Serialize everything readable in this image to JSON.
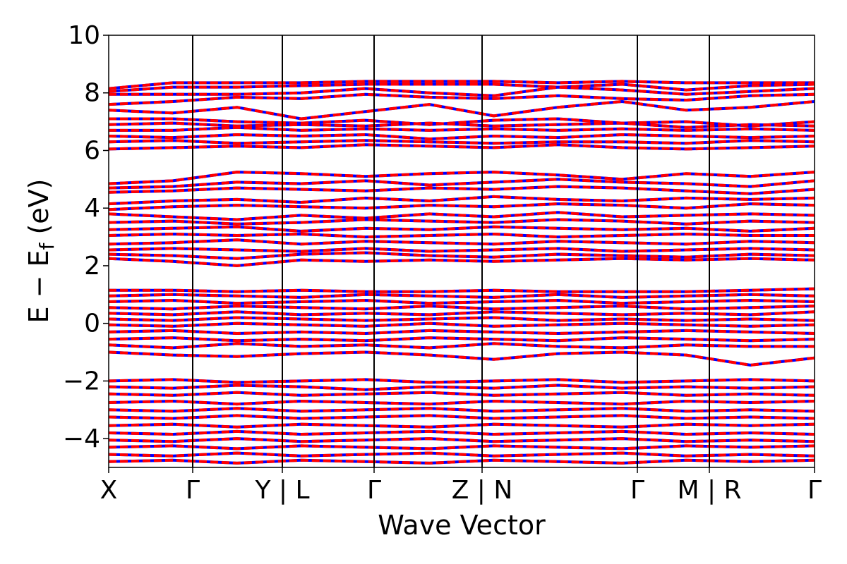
{
  "chart_data": {
    "type": "line",
    "title": "",
    "xlabel": "Wave Vector",
    "ylabel": "E − Eᶠ (eV)",
    "ylabel_main": "E − E",
    "ylabel_sub": "f",
    "ylabel_unit": " (eV)",
    "ylim": [
      -5,
      10
    ],
    "yticks": [
      -4,
      -2,
      0,
      2,
      4,
      6,
      8,
      10
    ],
    "ytick_labels": [
      "−4",
      "−2",
      "0",
      "2",
      "4",
      "6",
      "8",
      "10"
    ],
    "x_range": [
      0,
      1
    ],
    "kpoint_ticks": [
      {
        "x": 0.0,
        "label": "X"
      },
      {
        "x": 0.119,
        "label": "Γ"
      },
      {
        "x": 0.246,
        "label": "Y | L"
      },
      {
        "x": 0.376,
        "label": "Γ"
      },
      {
        "x": 0.529,
        "label": "Z | N"
      },
      {
        "x": 0.749,
        "label": "Γ"
      },
      {
        "x": 0.851,
        "label": "M | R"
      },
      {
        "x": 1.0,
        "label": "Γ"
      }
    ],
    "segment_boundaries": [
      0.119,
      0.246,
      0.376,
      0.529,
      0.749,
      0.851
    ],
    "grid": false,
    "legend": "none",
    "series": [
      {
        "color": "#0000ff",
        "linestyle": "solid"
      },
      {
        "color": "#ff0000",
        "linestyle": "dashed"
      }
    ],
    "bands": [
      [
        8.15,
        8.35,
        8.35,
        8.35,
        8.4,
        8.4,
        8.4,
        8.35,
        8.4,
        8.35,
        8.35,
        8.35
      ],
      [
        8.05,
        8.2,
        8.2,
        8.25,
        8.3,
        8.3,
        8.3,
        8.2,
        8.3,
        8.1,
        8.25,
        8.3
      ],
      [
        7.95,
        7.95,
        7.95,
        8.0,
        8.15,
        8.0,
        7.9,
        8.2,
        8.1,
        7.95,
        8.05,
        8.15
      ],
      [
        7.6,
        7.7,
        7.85,
        7.8,
        7.95,
        7.85,
        7.8,
        7.9,
        7.8,
        7.75,
        7.9,
        7.95
      ],
      [
        7.4,
        7.3,
        7.5,
        7.1,
        7.35,
        7.6,
        7.2,
        7.5,
        7.7,
        7.4,
        7.5,
        7.7
      ],
      [
        7.1,
        7.1,
        7.0,
        6.95,
        7.05,
        6.9,
        7.05,
        7.1,
        6.95,
        7.0,
        6.85,
        7.0
      ],
      [
        6.9,
        6.95,
        6.85,
        6.9,
        6.85,
        6.95,
        6.85,
        6.9,
        6.95,
        6.8,
        6.9,
        6.85
      ],
      [
        6.7,
        6.7,
        6.8,
        6.7,
        6.75,
        6.7,
        6.75,
        6.7,
        6.75,
        6.7,
        6.75,
        6.7
      ],
      [
        6.5,
        6.45,
        6.55,
        6.5,
        6.55,
        6.4,
        6.5,
        6.45,
        6.55,
        6.5,
        6.45,
        6.5
      ],
      [
        6.3,
        6.35,
        6.25,
        6.3,
        6.35,
        6.3,
        6.25,
        6.3,
        6.3,
        6.25,
        6.35,
        6.3
      ],
      [
        6.05,
        6.1,
        6.15,
        6.1,
        6.2,
        6.15,
        6.1,
        6.2,
        6.1,
        6.05,
        6.1,
        6.15
      ],
      [
        4.85,
        4.95,
        5.25,
        5.2,
        5.1,
        5.2,
        5.25,
        5.15,
        5.0,
        5.2,
        5.1,
        5.25
      ],
      [
        4.7,
        4.75,
        4.9,
        4.85,
        4.95,
        4.8,
        4.9,
        5.0,
        4.9,
        4.85,
        4.75,
        4.95
      ],
      [
        4.55,
        4.6,
        4.7,
        4.65,
        4.6,
        4.7,
        4.65,
        4.75,
        4.7,
        4.6,
        4.5,
        4.65
      ],
      [
        4.15,
        4.25,
        4.3,
        4.2,
        4.35,
        4.25,
        4.4,
        4.3,
        4.25,
        4.35,
        4.3,
        4.35
      ],
      [
        3.95,
        4.05,
        4.1,
        4.05,
        4.0,
        4.1,
        4.05,
        4.15,
        4.1,
        4.0,
        4.15,
        4.1
      ],
      [
        3.8,
        3.7,
        3.6,
        3.75,
        3.65,
        3.8,
        3.7,
        3.85,
        3.7,
        3.75,
        3.8,
        3.75
      ],
      [
        3.5,
        3.55,
        3.45,
        3.5,
        3.6,
        3.55,
        3.5,
        3.6,
        3.55,
        3.45,
        3.55,
        3.5
      ],
      [
        3.25,
        3.3,
        3.35,
        3.2,
        3.3,
        3.25,
        3.35,
        3.3,
        3.25,
        3.3,
        3.2,
        3.3
      ],
      [
        3.05,
        3.1,
        3.05,
        3.1,
        3.0,
        3.05,
        3.1,
        3.0,
        3.05,
        3.1,
        3.05,
        3.05
      ],
      [
        2.75,
        2.8,
        2.9,
        2.75,
        2.85,
        2.8,
        2.75,
        2.85,
        2.8,
        2.75,
        2.85,
        2.8
      ],
      [
        2.55,
        2.6,
        2.55,
        2.5,
        2.6,
        2.5,
        2.55,
        2.6,
        2.5,
        2.55,
        2.6,
        2.55
      ],
      [
        2.4,
        2.35,
        2.25,
        2.4,
        2.45,
        2.35,
        2.3,
        2.4,
        2.35,
        2.3,
        2.4,
        2.35
      ],
      [
        2.25,
        2.15,
        2.0,
        2.2,
        2.15,
        2.2,
        2.15,
        2.2,
        2.25,
        2.2,
        2.25,
        2.2
      ],
      [
        1.15,
        1.15,
        1.1,
        1.15,
        1.1,
        1.1,
        1.15,
        1.1,
        1.1,
        1.1,
        1.15,
        1.2
      ],
      [
        0.95,
        1.0,
        0.95,
        0.9,
        1.0,
        0.95,
        0.9,
        1.0,
        0.9,
        0.95,
        1.0,
        0.95
      ],
      [
        0.75,
        0.8,
        0.7,
        0.75,
        0.8,
        0.7,
        0.75,
        0.8,
        0.7,
        0.75,
        0.8,
        0.75
      ],
      [
        0.55,
        0.5,
        0.6,
        0.55,
        0.5,
        0.6,
        0.5,
        0.55,
        0.6,
        0.5,
        0.55,
        0.6
      ],
      [
        0.35,
        0.3,
        0.4,
        0.3,
        0.35,
        0.3,
        0.4,
        0.35,
        0.3,
        0.35,
        0.3,
        0.4
      ],
      [
        0.15,
        0.1,
        0.2,
        0.15,
        0.1,
        0.15,
        0.2,
        0.1,
        0.15,
        0.1,
        0.15,
        0.1
      ],
      [
        -0.05,
        -0.1,
        0.0,
        -0.05,
        -0.1,
        0.0,
        -0.1,
        -0.05,
        0.0,
        -0.05,
        -0.1,
        -0.05
      ],
      [
        -0.3,
        -0.25,
        -0.35,
        -0.3,
        -0.35,
        -0.25,
        -0.3,
        -0.35,
        -0.3,
        -0.25,
        -0.3,
        -0.35
      ],
      [
        -0.55,
        -0.5,
        -0.6,
        -0.55,
        -0.6,
        -0.5,
        -0.55,
        -0.6,
        -0.5,
        -0.55,
        -0.6,
        -0.55
      ],
      [
        -0.75,
        -0.85,
        -0.7,
        -0.8,
        -0.75,
        -0.85,
        -0.7,
        -0.8,
        -0.85,
        -0.75,
        -0.8,
        -0.8
      ],
      [
        -1.0,
        -1.1,
        -1.15,
        -1.05,
        -1.0,
        -1.1,
        -1.25,
        -1.05,
        -1.0,
        -1.1,
        -1.45,
        -1.2
      ],
      [
        -2.0,
        -1.95,
        -2.05,
        -2.0,
        -1.95,
        -2.05,
        -2.0,
        -1.95,
        -2.05,
        -2.0,
        -1.95,
        -2.0
      ],
      [
        -2.2,
        -2.25,
        -2.15,
        -2.2,
        -2.3,
        -2.2,
        -2.25,
        -2.15,
        -2.25,
        -2.2,
        -2.25,
        -2.2
      ],
      [
        -2.45,
        -2.5,
        -2.4,
        -2.5,
        -2.45,
        -2.4,
        -2.5,
        -2.45,
        -2.4,
        -2.5,
        -2.45,
        -2.5
      ],
      [
        -2.75,
        -2.7,
        -2.8,
        -2.7,
        -2.75,
        -2.8,
        -2.7,
        -2.75,
        -2.8,
        -2.7,
        -2.75,
        -2.7
      ],
      [
        -3.0,
        -3.05,
        -2.95,
        -3.05,
        -3.0,
        -2.95,
        -3.05,
        -3.0,
        -2.95,
        -3.05,
        -3.0,
        -3.05
      ],
      [
        -3.25,
        -3.3,
        -3.2,
        -3.3,
        -3.25,
        -3.2,
        -3.3,
        -3.25,
        -3.2,
        -3.3,
        -3.25,
        -3.3
      ],
      [
        -3.55,
        -3.5,
        -3.6,
        -3.5,
        -3.55,
        -3.6,
        -3.5,
        -3.55,
        -3.6,
        -3.5,
        -3.55,
        -3.5
      ],
      [
        -3.8,
        -3.85,
        -3.75,
        -3.85,
        -3.8,
        -3.75,
        -3.85,
        -3.8,
        -3.75,
        -3.85,
        -3.8,
        -3.85
      ],
      [
        -4.05,
        -4.1,
        -4.0,
        -4.1,
        -4.05,
        -4.0,
        -4.1,
        -4.05,
        -4.0,
        -4.1,
        -4.05,
        -4.1
      ],
      [
        -4.3,
        -4.25,
        -4.35,
        -4.25,
        -4.3,
        -4.35,
        -4.25,
        -4.3,
        -4.35,
        -4.25,
        -4.3,
        -4.25
      ],
      [
        -4.55,
        -4.6,
        -4.5,
        -4.6,
        -4.55,
        -4.5,
        -4.6,
        -4.55,
        -4.5,
        -4.6,
        -4.55,
        -4.6
      ],
      [
        -4.8,
        -4.75,
        -4.85,
        -4.75,
        -4.8,
        -4.85,
        -4.75,
        -4.8,
        -4.85,
        -4.75,
        -4.8,
        -4.75
      ]
    ]
  }
}
